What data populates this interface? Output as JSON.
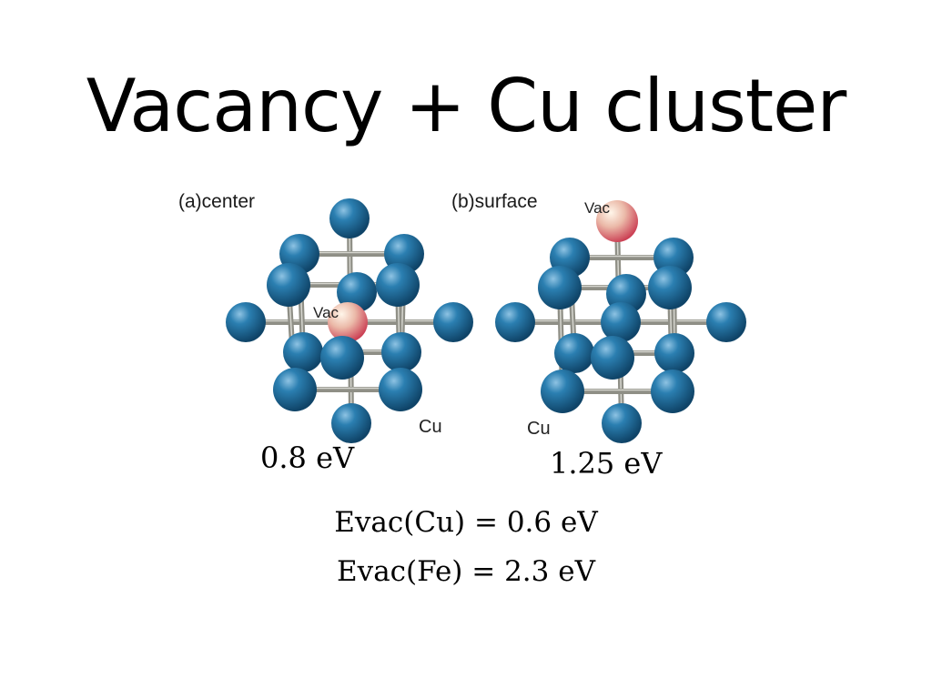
{
  "title": "Vacancy + Cu cluster",
  "panels": [
    {
      "label": "(a)center",
      "vac_label": "Vac",
      "cu_label": "Cu",
      "energy": "0.8 eV"
    },
    {
      "label": "(b)surface",
      "vac_label": "Vac",
      "cu_label": "Cu",
      "energy": "1.25 eV"
    }
  ],
  "equations": [
    "Evac(Cu) = 0.6 eV",
    "Evac(Fe) = 2.3 eV"
  ],
  "colors": {
    "cu_atom": "#1f6f9f",
    "vacancy": "#d04a5a",
    "bond": "#8f8f86"
  }
}
